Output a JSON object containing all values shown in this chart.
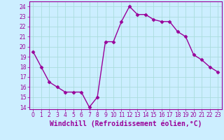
{
  "x": [
    0,
    1,
    2,
    3,
    4,
    5,
    6,
    7,
    8,
    9,
    10,
    11,
    12,
    13,
    14,
    15,
    16,
    17,
    18,
    19,
    20,
    21,
    22,
    23
  ],
  "y": [
    19.5,
    18.0,
    16.5,
    16.0,
    15.5,
    15.5,
    15.5,
    14.0,
    15.0,
    20.5,
    20.5,
    22.5,
    24.0,
    23.2,
    23.2,
    22.7,
    22.5,
    22.5,
    21.5,
    21.0,
    19.2,
    18.7,
    18.0,
    17.5
  ],
  "line_color": "#990099",
  "marker": "D",
  "marker_size": 2.5,
  "linewidth": 1.0,
  "xlabel": "Windchill (Refroidissement éolien,°C)",
  "xlabel_fontsize": 7,
  "ylim": [
    13.8,
    24.5
  ],
  "xlim": [
    -0.5,
    23.5
  ],
  "yticks": [
    14,
    15,
    16,
    17,
    18,
    19,
    20,
    21,
    22,
    23,
    24
  ],
  "xticks": [
    0,
    1,
    2,
    3,
    4,
    5,
    6,
    7,
    8,
    9,
    10,
    11,
    12,
    13,
    14,
    15,
    16,
    17,
    18,
    19,
    20,
    21,
    22,
    23
  ],
  "tick_fontsize": 5.5,
  "background_color": "#cceeff",
  "grid_color": "#aadddd",
  "tick_color": "#990099",
  "label_color": "#990099",
  "spine_color": "#990099"
}
